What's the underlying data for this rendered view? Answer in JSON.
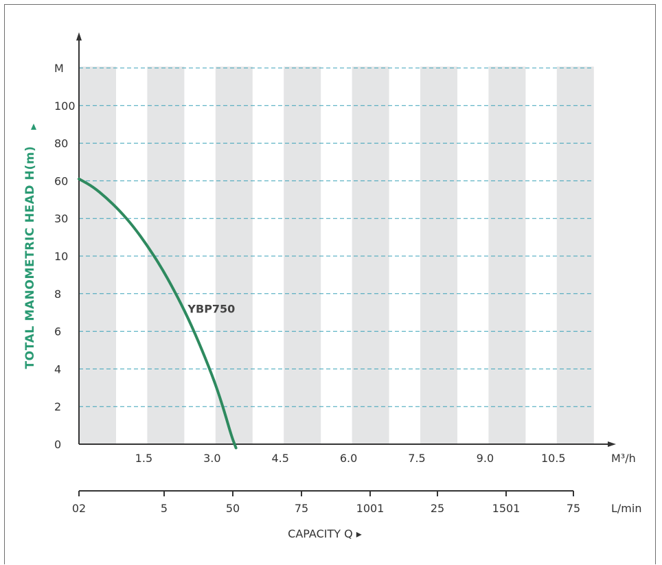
{
  "chart_data": {
    "type": "line",
    "ylabel": "TOTAL MANOMETRIC HEAD H(m)",
    "y_tick_labels": [
      "0",
      "2",
      "4",
      "6",
      "8",
      "10",
      "30",
      "60",
      "80",
      "100",
      "M"
    ],
    "x_unit_primary": "M³/h",
    "x_tick_labels_primary": [
      "1.5",
      "3.0",
      "4.5",
      "6.0",
      "7.5",
      "9.0",
      "10.5"
    ],
    "x_unit_secondary": "L/min",
    "x_tick_labels_secondary": [
      "02",
      "5",
      "50",
      "75",
      "1001",
      "25",
      "1501",
      "75"
    ],
    "xlabel": "CAPACITY Q ▸",
    "series": [
      {
        "name": "YBP750",
        "color": "#2e8a5f",
        "points": [
          [
            0,
            7.05
          ],
          [
            0.3,
            6.85
          ],
          [
            0.6,
            6.55
          ],
          [
            0.9,
            6.2
          ],
          [
            1.2,
            5.78
          ],
          [
            1.5,
            5.28
          ],
          [
            1.8,
            4.72
          ],
          [
            2.1,
            4.07
          ],
          [
            2.4,
            3.35
          ],
          [
            2.7,
            2.52
          ],
          [
            3.0,
            1.6
          ],
          [
            3.2,
            0.85
          ],
          [
            3.35,
            0.22
          ],
          [
            3.45,
            -0.1
          ]
        ]
      }
    ],
    "annotations": [
      {
        "text": "YBP750",
        "x": 2.3,
        "y": 3.6
      }
    ],
    "grid": {
      "horizontal_dashed": true,
      "vertical_bands": true
    },
    "band_color": "#e4e5e6",
    "grid_color": "#3aa2b8",
    "axis_color": "#333333"
  }
}
